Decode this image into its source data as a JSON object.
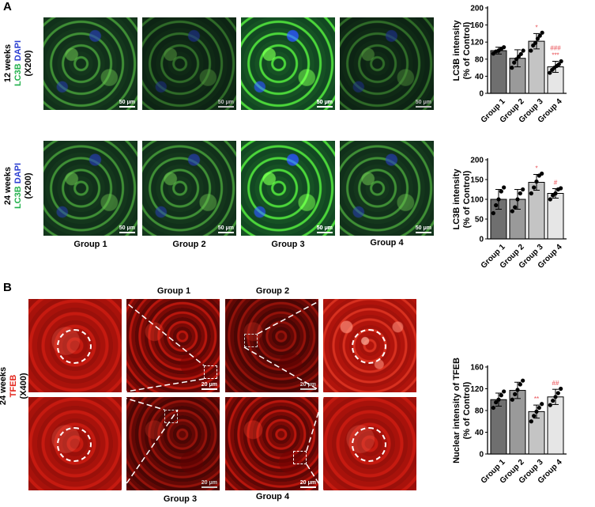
{
  "panelA": {
    "letter": "A",
    "row12_label": {
      "line1": "12 weeks",
      "lc3b": "LC3B",
      "dapi": "DAPI",
      "mag": "(X200)"
    },
    "row24_label": {
      "line1": "24 weeks",
      "lc3b": "LC3B",
      "dapi": "DAPI",
      "mag": "(X200)"
    },
    "scale_bar": "50 μm",
    "groups": [
      "Group 1",
      "Group 2",
      "Group 3",
      "Group 4"
    ]
  },
  "panelB": {
    "letter": "B",
    "row_label": {
      "line1": "24 weeks",
      "tfeb": "TFEB",
      "mag": "(X400)"
    },
    "scale_bar": "20 μm",
    "top_groups": [
      "Group 1",
      "Group 2"
    ],
    "bottom_groups": [
      "Group 3",
      "Group 4"
    ]
  },
  "colors": {
    "bar_dark": "#6f6f6f",
    "bar_mid": "#9a9a9a",
    "bar_light": "#c4c4c4",
    "bar_lightest": "#e6e6e6",
    "annot": "#e8474d",
    "green": "#22b14c",
    "blue": "#2b3fd1",
    "red": "#e3261c"
  },
  "chart_data": [
    {
      "type": "bar",
      "ylabel": "LC3B intensity\n(% of Control)",
      "categories": [
        "Group 1",
        "Group 2",
        "Group 3",
        "Group 4"
      ],
      "values": [
        100,
        82,
        122,
        62
      ],
      "errors": [
        8,
        20,
        18,
        13
      ],
      "points": [
        [
          93,
          98,
          100,
          104,
          108
        ],
        [
          60,
          72,
          80,
          86,
          92,
          100
        ],
        [
          100,
          112,
          118,
          128,
          135,
          142
        ],
        [
          48,
          55,
          60,
          64,
          68,
          75
        ]
      ],
      "annotations": [
        "",
        "",
        "*",
        "###\n***"
      ],
      "ylim": [
        0,
        200
      ],
      "yticks": [
        0,
        40,
        80,
        120,
        160,
        200
      ]
    },
    {
      "type": "bar",
      "ylabel": "LC3B intensity\n(% of Control)",
      "categories": [
        "Group 1",
        "Group 2",
        "Group 3",
        "Group 4"
      ],
      "values": [
        100,
        100,
        143,
        115
      ],
      "errors": [
        25,
        25,
        20,
        12
      ],
      "points": [
        [
          65,
          85,
          100,
          120,
          130
        ],
        [
          70,
          80,
          100,
          115,
          125
        ],
        [
          115,
          130,
          145,
          160,
          165
        ],
        [
          100,
          110,
          115,
          125,
          128
        ]
      ],
      "annotations": [
        "",
        "",
        "*",
        "#"
      ],
      "ylim": [
        0,
        200
      ],
      "yticks": [
        0,
        50,
        100,
        150,
        200
      ]
    },
    {
      "type": "bar",
      "ylabel": "Nuclear intensity of TFEB\n(% of Control)",
      "categories": [
        "Group 1",
        "Group 2",
        "Group 3",
        "Group 4"
      ],
      "values": [
        100,
        117,
        78,
        105
      ],
      "errors": [
        12,
        15,
        12,
        14
      ],
      "points": [
        [
          85,
          95,
          100,
          108,
          115
        ],
        [
          100,
          110,
          118,
          128,
          135
        ],
        [
          60,
          70,
          78,
          85,
          92
        ],
        [
          90,
          98,
          105,
          112,
          120
        ]
      ],
      "annotations": [
        "",
        "",
        "**",
        "##"
      ],
      "ylim": [
        0,
        160
      ],
      "yticks": [
        0,
        40,
        80,
        120,
        160
      ]
    }
  ]
}
